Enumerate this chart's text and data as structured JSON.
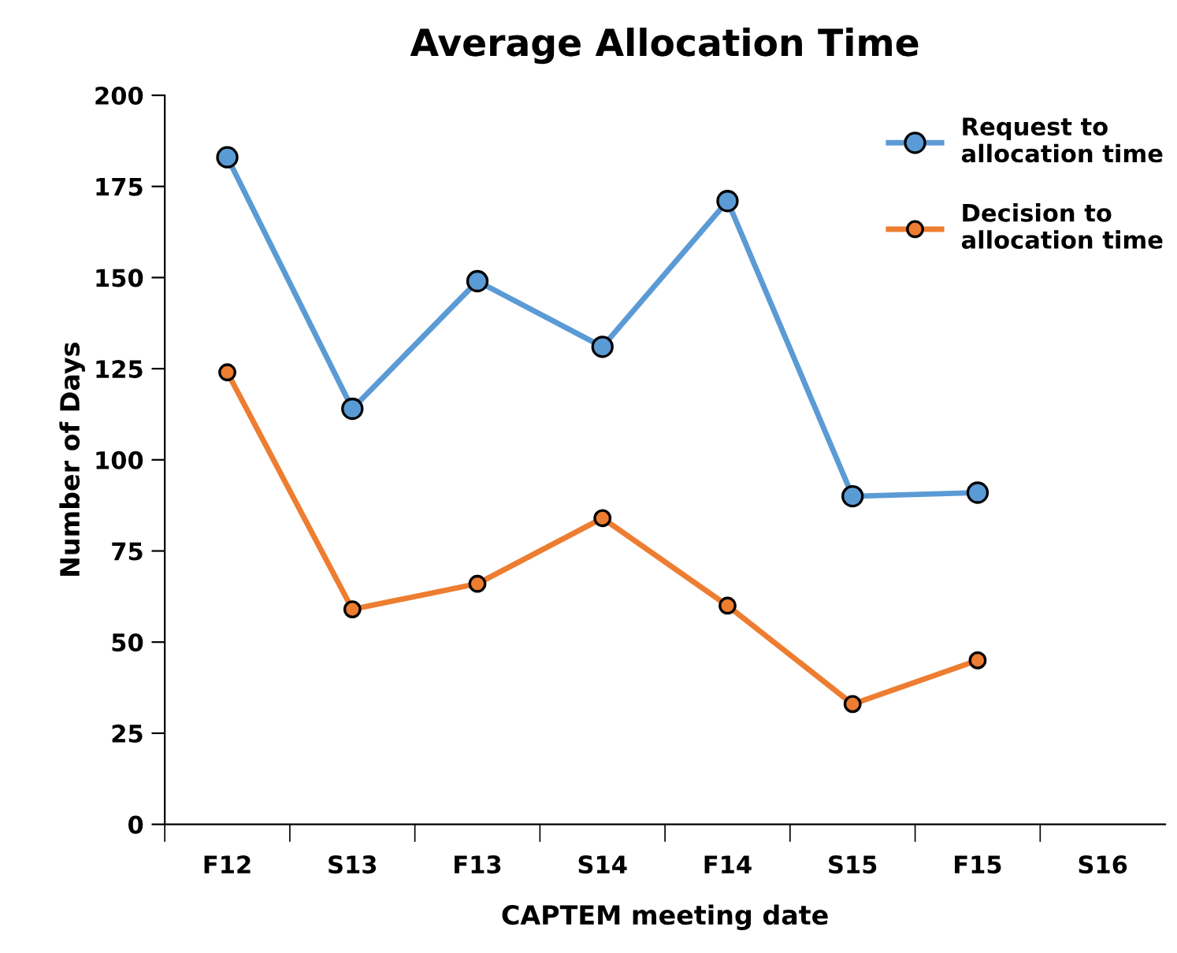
{
  "chart_data": {
    "type": "line",
    "title": "Average Allocation Time",
    "xlabel": "CAPTEM meeting date",
    "ylabel": "Number of Days",
    "categories": [
      "F12",
      "S13",
      "F13",
      "S14",
      "F14",
      "S15",
      "F15",
      "S16"
    ],
    "series": [
      {
        "name": "Request to\nallocation time",
        "color": "#5b9bd5",
        "values": [
          183,
          114,
          149,
          131,
          171,
          90,
          91,
          null
        ]
      },
      {
        "name": "Decision to\nallocation time",
        "color": "#ed7d31",
        "values": [
          124,
          59,
          66,
          84,
          60,
          33,
          45,
          null
        ]
      }
    ],
    "ylim": [
      0,
      200
    ],
    "yticks": [
      0,
      25,
      50,
      75,
      100,
      125,
      150,
      175,
      200
    ],
    "grid": false,
    "legend": "top right",
    "marker": "circle",
    "line_style": "solid"
  }
}
